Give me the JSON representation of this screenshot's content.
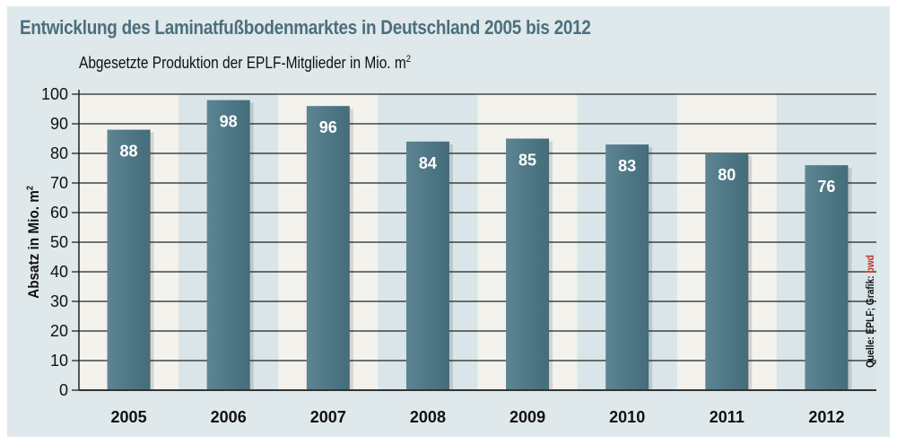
{
  "title": "Entwicklung des Laminatfußbodenmarktes in Deutschland 2005 bis 2012",
  "subtitle": "Abgesetzte Produktion der EPLF-Mitglieder in Mio. m",
  "subtitle_sup": "2",
  "source": "Quelle: EPLF; Grafik: ",
  "source_brand": "bwd",
  "colors": {
    "bar": "#4f7886",
    "title": "#4b6f7e",
    "panel": "#dfe8ea",
    "band_light": "#f3f2ec",
    "band_blue": "#d9e5e8",
    "brand": "#c0302a"
  },
  "chart_data": {
    "type": "bar",
    "title": "Entwicklung des Laminatfußbodenmarktes in Deutschland 2005 bis 2012",
    "ylabel": "Absatz in Mio. m",
    "ylabel_sup": "2",
    "xlabel": "",
    "categories": [
      "2005",
      "2006",
      "2007",
      "2008",
      "2009",
      "2010",
      "2011",
      "2012"
    ],
    "values": [
      88,
      98,
      96,
      84,
      85,
      83,
      80,
      76
    ],
    "ylim": [
      0,
      100
    ],
    "yticks": [
      0,
      10,
      20,
      30,
      40,
      50,
      60,
      70,
      80,
      90,
      100
    ],
    "grid": true,
    "data_labels": true
  }
}
